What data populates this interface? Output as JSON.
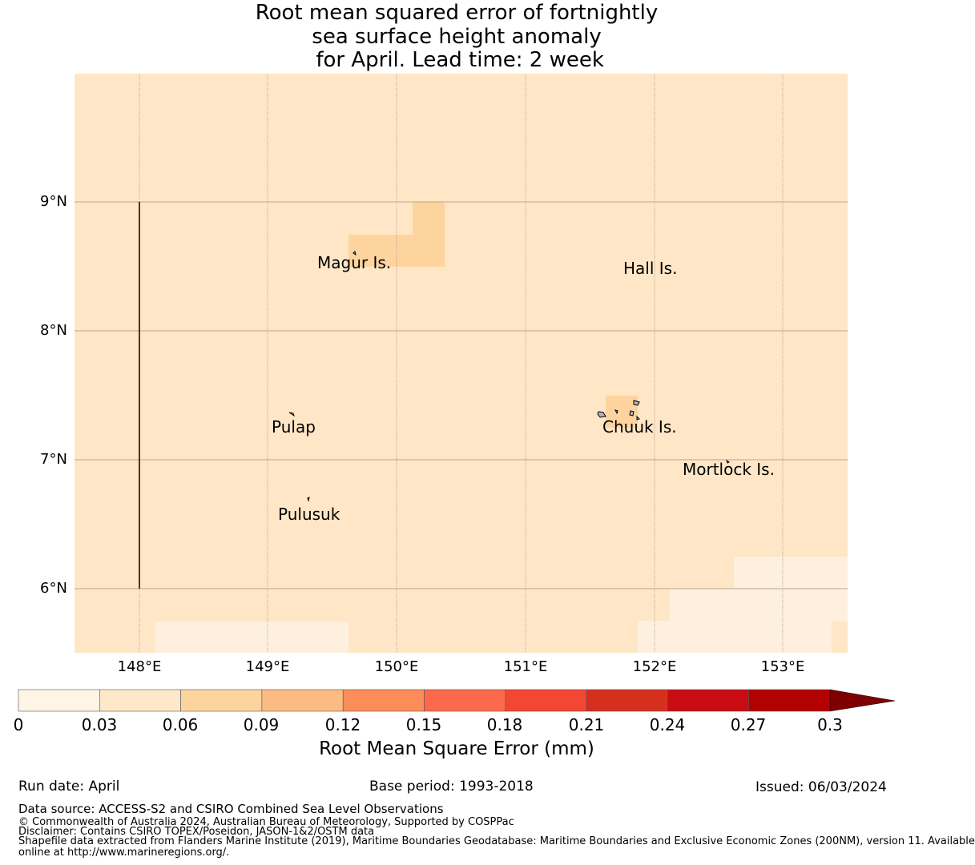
{
  "title_lines": [
    "Root mean squared error of fortnightly",
    "sea surface height anomaly",
    " for April. Lead time: 2 week"
  ],
  "map": {
    "lon_range": [
      147.5,
      153.5
    ],
    "lat_range": [
      5.5,
      10.0
    ],
    "lon_ticks": [
      "148°E",
      "149°E",
      "150°E",
      "151°E",
      "152°E",
      "153°E"
    ],
    "lat_ticks": [
      "9°N",
      "8°N",
      "7°N",
      "6°N"
    ],
    "grid": true,
    "colors": {
      "background": "#fee6c7",
      "low": "#fef0dc",
      "mid": "#fdd49e",
      "land": "#b5b5b5"
    },
    "places": [
      {
        "name": "Magur Is."
      },
      {
        "name": "Hall Is."
      },
      {
        "name": "Pulap"
      },
      {
        "name": "Chuuk Is."
      },
      {
        "name": "Mortlock Is."
      },
      {
        "name": "Pulusuk"
      }
    ]
  },
  "colorbar": {
    "ticks": [
      "0",
      "0.03",
      "0.06",
      "0.09",
      "0.12",
      "0.15",
      "0.18",
      "0.21",
      "0.24",
      "0.27",
      "0.3"
    ],
    "colors": [
      "#fff5e6",
      "#fee8c9",
      "#fdd49e",
      "#fdbb84",
      "#fc8d59",
      "#fc6a4b",
      "#f34633",
      "#d62f1e",
      "#c90c12",
      "#b30000"
    ],
    "extend_color": "#7f0000",
    "label": "Root Mean Square Error (mm)"
  },
  "footer": {
    "run_date": "Run date: April",
    "base_period": "Base period: 1993-2018",
    "issued": "Issued: 06/03/2024",
    "data_source": "Data source: ACCESS-S2 and CSIRO Combined Sea Level Observations",
    "copyright": "© Commonwealth of Australia 2024, Australian Bureau of Meteorology, Supported by COSPPac",
    "disclaimer": "Disclaimer: Contains CSIRO TOPEX/Poseidon, JASON-1&2/OSTM data",
    "shapefile_1": "Shapefile data extracted from Flanders Marine Institute (2019), Maritime Boundaries Geodatabase: Maritime Boundaries and Exclusive Economic Zones (200NM), version 11. Available",
    "shapefile_2": "online at http://www.marineregions.org/."
  }
}
